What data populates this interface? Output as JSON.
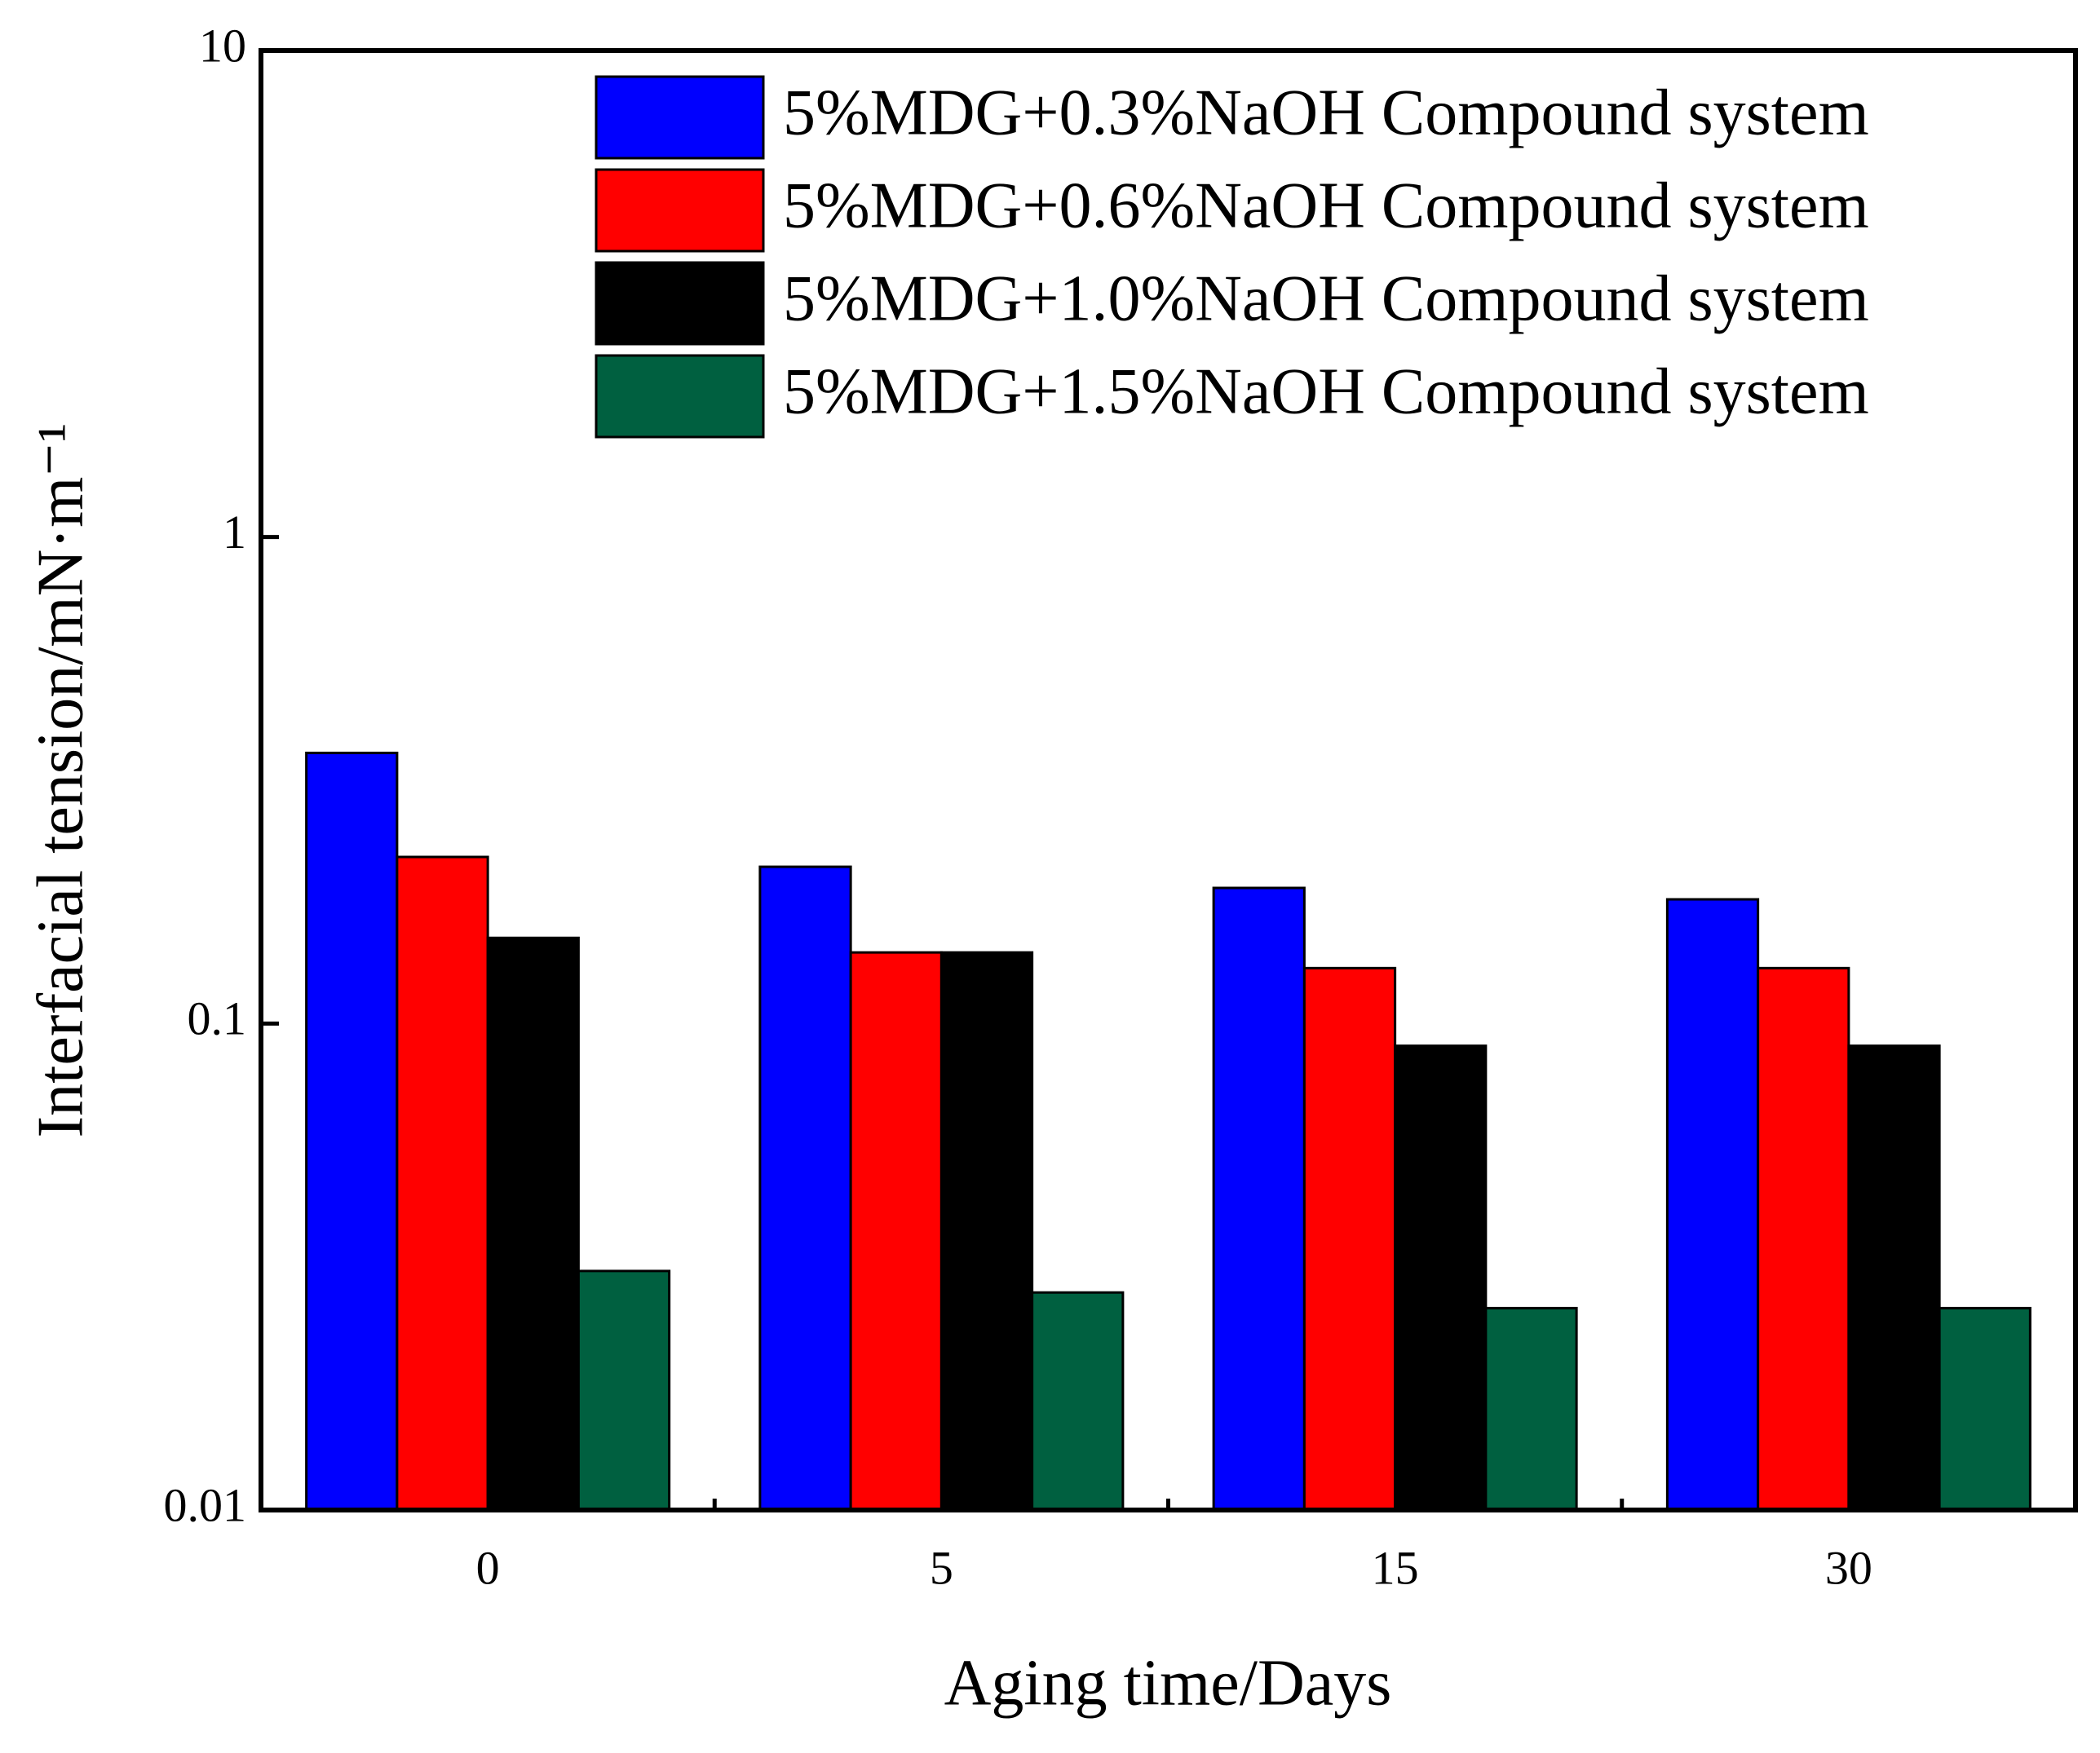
{
  "chart_data": {
    "type": "bar",
    "y_label": "Interfacial tension/mN·m⁻¹",
    "x_label": "Aging time/Days",
    "categories": [
      "0",
      "5",
      "15",
      "30"
    ],
    "series": [
      {
        "name": "5%MDG+0.3%NaOH Compound system",
        "color": "#0000ff",
        "values": [
          0.36,
          0.21,
          0.19,
          0.18
        ]
      },
      {
        "name": "5%MDG+0.6%NaOH Compound system",
        "color": "#ff0000",
        "values": [
          0.22,
          0.14,
          0.13,
          0.13
        ]
      },
      {
        "name": "5%MDG+1.0%NaOH Compound system",
        "color": "#000000",
        "values": [
          0.15,
          0.14,
          0.09,
          0.09
        ]
      },
      {
        "name": "5%MDG+1.5%NaOH Compound system",
        "color": "#006040",
        "values": [
          0.031,
          0.028,
          0.026,
          0.026
        ]
      }
    ],
    "ylim": [
      0.01,
      10
    ],
    "yticks": [
      0.01,
      0.1,
      1,
      10
    ],
    "log_y": true,
    "legend": "top-right"
  }
}
